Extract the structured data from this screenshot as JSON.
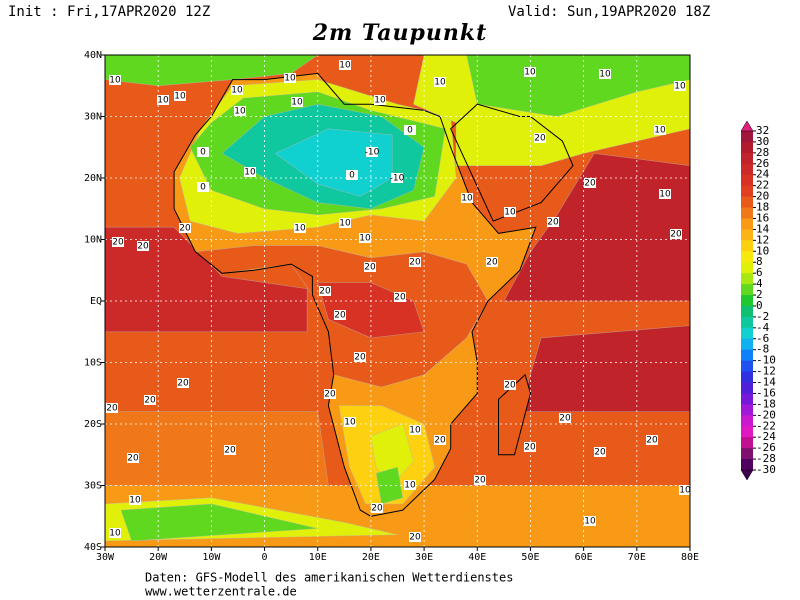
{
  "header": {
    "init": "Init : Fri,17APR2020 12Z",
    "valid": "Valid: Sun,19APR2020 18Z",
    "title": "2m Taupunkt"
  },
  "map": {
    "xlim": [
      -30,
      80
    ],
    "ylim": [
      -40,
      40
    ],
    "xticks": [
      {
        "value": -30,
        "label": "30W"
      },
      {
        "value": -20,
        "label": "20W"
      },
      {
        "value": -10,
        "label": "10W"
      },
      0,
      {
        "value": 10,
        "label": "10E"
      },
      {
        "value": 20,
        "label": "20E"
      },
      {
        "value": 30,
        "label": "30E"
      },
      {
        "value": 40,
        "label": "40E"
      },
      {
        "value": 50,
        "label": "50E"
      },
      {
        "value": 60,
        "label": "60E"
      },
      {
        "value": 70,
        "label": "70E"
      },
      {
        "value": 80,
        "label": "80E"
      }
    ],
    "yticks": [
      {
        "value": 40,
        "label": "40N"
      },
      {
        "value": 30,
        "label": "30N"
      },
      {
        "value": 20,
        "label": "20N"
      },
      {
        "value": 10,
        "label": "10N"
      },
      {
        "value": 0,
        "label": "EQ"
      },
      {
        "value": -10,
        "label": "10S"
      },
      {
        "value": -20,
        "label": "20S"
      },
      {
        "value": -30,
        "label": "30S"
      },
      {
        "value": -40,
        "label": "40S"
      }
    ],
    "grid": true,
    "contour_labels": [
      10,
      10,
      10,
      10,
      10,
      10,
      10,
      10,
      10,
      10,
      10,
      10,
      10,
      10,
      0,
      -10,
      -10,
      0,
      0,
      0,
      10,
      20,
      20,
      20,
      10,
      10,
      10,
      10,
      10,
      20,
      20,
      20,
      20,
      20,
      20,
      20,
      20,
      20,
      20,
      20,
      20,
      20,
      20,
      20,
      20,
      20,
      10,
      10,
      20,
      20,
      20,
      20,
      20,
      20,
      20,
      10,
      20,
      20,
      10,
      10,
      10,
      10,
      10
    ]
  },
  "colorbar": {
    "levels": [
      32,
      30,
      28,
      26,
      24,
      22,
      20,
      18,
      16,
      14,
      12,
      10,
      8,
      6,
      4,
      2,
      0,
      -2,
      -4,
      -6,
      -8,
      -10,
      -12,
      -14,
      -16,
      -18,
      -20,
      -22,
      -24,
      -26,
      -28,
      -30
    ],
    "colors": [
      "#a0153c",
      "#b01c2c",
      "#c0242a",
      "#cc2a28",
      "#d83224",
      "#e04020",
      "#e85a1a",
      "#f07818",
      "#f89a16",
      "#fcb414",
      "#fdd010",
      "#f8e80c",
      "#e0f008",
      "#a8e810",
      "#60d820",
      "#20c830",
      "#10c070",
      "#10c8a0",
      "#10d0d0",
      "#10b0f0",
      "#1080f8",
      "#2050f0",
      "#3030e0",
      "#5020d8",
      "#7818d8",
      "#a018d8",
      "#c818d0",
      "#e018c0",
      "#c01090",
      "#801070",
      "#500060"
    ]
  },
  "footer": {
    "source": "Daten: GFS-Modell des amerikanischen Wetterdienstes",
    "site": "www.wetterzentrale.de"
  }
}
